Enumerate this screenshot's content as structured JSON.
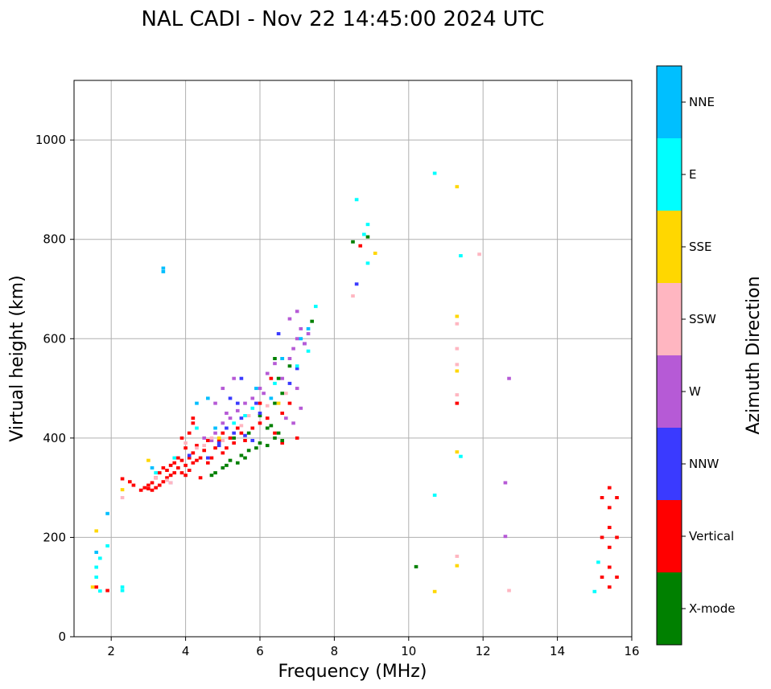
{
  "chart_data": {
    "type": "scatter",
    "title": "NAL CADI - Nov 22 14:45:00 2024 UTC",
    "xlabel": "Frequency (MHz)",
    "ylabel": "Virtual height (km)",
    "xlim": [
      1,
      16
    ],
    "ylim": [
      0,
      1120
    ],
    "xticks": [
      2,
      4,
      6,
      8,
      10,
      12,
      14,
      16
    ],
    "yticks": [
      0,
      200,
      400,
      600,
      800,
      1000
    ],
    "grid": true,
    "colorbar": {
      "label": "Azimuth Direction",
      "categories": [
        {
          "name": "X-mode",
          "color": "#008000"
        },
        {
          "name": "Vertical",
          "color": "#ff0000"
        },
        {
          "name": "NNW",
          "color": "#3a3aff"
        },
        {
          "name": "W",
          "color": "#b65ad6"
        },
        {
          "name": "SSW",
          "color": "#ffb6c1"
        },
        {
          "name": "SSE",
          "color": "#ffd700"
        },
        {
          "name": "E",
          "color": "#00ffff"
        },
        {
          "name": "NNE",
          "color": "#00bfff"
        }
      ]
    },
    "series": [
      {
        "name": "Vertical",
        "points": [
          [
            2.3,
            318
          ],
          [
            2.5,
            312
          ],
          [
            2.6,
            305
          ],
          [
            2.8,
            295
          ],
          [
            2.9,
            300
          ],
          [
            3.0,
            305
          ],
          [
            3.0,
            298
          ],
          [
            3.1,
            310
          ],
          [
            3.1,
            295
          ],
          [
            3.2,
            320
          ],
          [
            3.2,
            300
          ],
          [
            3.3,
            305
          ],
          [
            3.3,
            330
          ],
          [
            3.4,
            312
          ],
          [
            3.4,
            340
          ],
          [
            3.5,
            320
          ],
          [
            3.5,
            335
          ],
          [
            3.6,
            345
          ],
          [
            3.6,
            325
          ],
          [
            3.7,
            350
          ],
          [
            3.7,
            330
          ],
          [
            3.8,
            340
          ],
          [
            3.8,
            360
          ],
          [
            3.9,
            330
          ],
          [
            3.9,
            355
          ],
          [
            4.0,
            325
          ],
          [
            4.0,
            345
          ],
          [
            4.0,
            380
          ],
          [
            4.1,
            335
          ],
          [
            4.1,
            360
          ],
          [
            4.1,
            410
          ],
          [
            4.2,
            350
          ],
          [
            4.2,
            370
          ],
          [
            4.3,
            385
          ],
          [
            4.3,
            355
          ],
          [
            4.4,
            360
          ],
          [
            4.5,
            375
          ],
          [
            4.6,
            350
          ],
          [
            4.6,
            395
          ],
          [
            4.7,
            360
          ],
          [
            4.8,
            380
          ],
          [
            4.9,
            395
          ],
          [
            5.0,
            370
          ],
          [
            5.0,
            410
          ],
          [
            5.1,
            380
          ],
          [
            5.2,
            400
          ],
          [
            5.3,
            390
          ],
          [
            5.4,
            420
          ],
          [
            5.5,
            410
          ],
          [
            5.6,
            395
          ],
          [
            5.8,
            420
          ],
          [
            6.0,
            430
          ],
          [
            6.0,
            470
          ],
          [
            6.2,
            440
          ],
          [
            6.3,
            520
          ],
          [
            6.4,
            410
          ],
          [
            6.6,
            450
          ],
          [
            6.6,
            390
          ],
          [
            6.8,
            470
          ],
          [
            7.0,
            400
          ],
          [
            3.9,
            400
          ],
          [
            4.2,
            430
          ],
          [
            4.4,
            320
          ],
          [
            4.2,
            440
          ],
          [
            11.3,
            470
          ],
          [
            8.7,
            787
          ],
          [
            15.4,
            100
          ],
          [
            15.4,
            140
          ],
          [
            15.4,
            180
          ],
          [
            15.4,
            220
          ],
          [
            15.4,
            260
          ],
          [
            15.4,
            300
          ],
          [
            15.2,
            120
          ],
          [
            15.6,
            120
          ],
          [
            15.2,
            200
          ],
          [
            15.6,
            200
          ],
          [
            15.2,
            280
          ],
          [
            15.6,
            280
          ],
          [
            1.6,
            100
          ],
          [
            1.9,
            93
          ]
        ]
      },
      {
        "name": "X-mode",
        "points": [
          [
            4.7,
            325
          ],
          [
            4.8,
            330
          ],
          [
            5.0,
            340
          ],
          [
            5.1,
            345
          ],
          [
            5.2,
            355
          ],
          [
            5.4,
            350
          ],
          [
            5.5,
            365
          ],
          [
            5.6,
            360
          ],
          [
            5.7,
            375
          ],
          [
            5.9,
            380
          ],
          [
            6.0,
            390
          ],
          [
            6.2,
            385
          ],
          [
            6.4,
            400
          ],
          [
            6.5,
            410
          ],
          [
            6.6,
            395
          ],
          [
            6.3,
            425
          ],
          [
            6.4,
            470
          ],
          [
            6.5,
            520
          ],
          [
            6.6,
            560
          ],
          [
            6.4,
            560
          ],
          [
            6.8,
            545
          ],
          [
            6.2,
            420
          ],
          [
            5.7,
            410
          ],
          [
            5.3,
            400
          ],
          [
            7.4,
            635
          ],
          [
            10.2,
            141
          ],
          [
            8.9,
            805
          ],
          [
            8.5,
            795
          ],
          [
            6.6,
            490
          ],
          [
            6.0,
            445
          ]
        ]
      },
      {
        "name": "NNW",
        "points": [
          [
            3.6,
            310
          ],
          [
            4.1,
            365
          ],
          [
            4.6,
            360
          ],
          [
            4.9,
            390
          ],
          [
            5.1,
            420
          ],
          [
            5.3,
            410
          ],
          [
            5.6,
            405
          ],
          [
            5.8,
            395
          ],
          [
            5.2,
            480
          ],
          [
            5.4,
            470
          ],
          [
            5.5,
            440
          ],
          [
            5.9,
            470
          ],
          [
            6.0,
            450
          ],
          [
            6.5,
            610
          ],
          [
            6.8,
            510
          ],
          [
            7.0,
            540
          ],
          [
            7.2,
            590
          ],
          [
            8.6,
            710
          ],
          [
            5.5,
            520
          ],
          [
            4.9,
            385
          ]
        ]
      },
      {
        "name": "W",
        "points": [
          [
            4.5,
            400
          ],
          [
            4.7,
            395
          ],
          [
            4.8,
            410
          ],
          [
            5.0,
            430
          ],
          [
            5.1,
            450
          ],
          [
            5.2,
            440
          ],
          [
            5.4,
            455
          ],
          [
            5.6,
            470
          ],
          [
            5.8,
            480
          ],
          [
            6.0,
            500
          ],
          [
            6.1,
            490
          ],
          [
            6.2,
            530
          ],
          [
            6.4,
            550
          ],
          [
            6.6,
            520
          ],
          [
            6.8,
            560
          ],
          [
            6.9,
            580
          ],
          [
            7.0,
            600
          ],
          [
            7.1,
            620
          ],
          [
            7.2,
            590
          ],
          [
            7.0,
            500
          ],
          [
            7.1,
            460
          ],
          [
            6.9,
            430
          ],
          [
            6.7,
            440
          ],
          [
            6.8,
            640
          ],
          [
            7.3,
            610
          ],
          [
            5.3,
            520
          ],
          [
            5.0,
            500
          ],
          [
            4.8,
            470
          ],
          [
            12.7,
            520
          ],
          [
            12.6,
            310
          ],
          [
            12.6,
            202
          ],
          [
            7.0,
            655
          ]
        ]
      },
      {
        "name": "SSW",
        "points": [
          [
            2.3,
            280
          ],
          [
            3.2,
            320
          ],
          [
            3.5,
            315
          ],
          [
            3.6,
            310
          ],
          [
            4.3,
            380
          ],
          [
            4.5,
            385
          ],
          [
            4.7,
            400
          ],
          [
            5.0,
            395
          ],
          [
            5.5,
            425
          ],
          [
            5.7,
            445
          ],
          [
            6.2,
            465
          ],
          [
            6.5,
            470
          ],
          [
            6.7,
            490
          ],
          [
            8.5,
            686
          ],
          [
            11.3,
            630
          ],
          [
            11.3,
            580
          ],
          [
            11.3,
            548
          ],
          [
            11.3,
            487
          ],
          [
            11.9,
            770
          ],
          [
            11.3,
            162
          ],
          [
            12.7,
            93
          ],
          [
            4.0,
            390
          ]
        ]
      },
      {
        "name": "SSE",
        "points": [
          [
            1.6,
            213
          ],
          [
            2.3,
            296
          ],
          [
            3.0,
            355
          ],
          [
            4.9,
            400
          ],
          [
            6.5,
            470
          ],
          [
            9.1,
            772
          ],
          [
            11.3,
            906
          ],
          [
            11.3,
            645
          ],
          [
            11.3,
            535
          ],
          [
            11.3,
            372
          ],
          [
            11.3,
            143
          ],
          [
            10.7,
            91
          ],
          [
            1.5,
            100
          ]
        ]
      },
      {
        "name": "E",
        "points": [
          [
            1.6,
            140
          ],
          [
            1.6,
            120
          ],
          [
            1.7,
            92
          ],
          [
            2.3,
            93
          ],
          [
            2.3,
            100
          ],
          [
            1.9,
            183
          ],
          [
            3.2,
            330
          ],
          [
            3.7,
            360
          ],
          [
            4.3,
            420
          ],
          [
            5.3,
            430
          ],
          [
            5.8,
            460
          ],
          [
            6.4,
            510
          ],
          [
            7.0,
            545
          ],
          [
            7.3,
            575
          ],
          [
            7.5,
            665
          ],
          [
            8.6,
            880
          ],
          [
            8.9,
            830
          ],
          [
            8.8,
            810
          ],
          [
            8.9,
            752
          ],
          [
            10.7,
            933
          ],
          [
            10.7,
            285
          ],
          [
            11.4,
            767
          ],
          [
            11.4,
            363
          ],
          [
            15.1,
            150
          ],
          [
            15.0,
            91
          ],
          [
            1.7,
            158
          ],
          [
            5.6,
            445
          ]
        ]
      },
      {
        "name": "NNE",
        "points": [
          [
            1.6,
            170
          ],
          [
            1.9,
            248
          ],
          [
            3.4,
            742
          ],
          [
            3.4,
            735
          ],
          [
            3.1,
            340
          ],
          [
            4.3,
            470
          ],
          [
            4.6,
            480
          ],
          [
            4.8,
            420
          ],
          [
            5.9,
            500
          ],
          [
            6.3,
            480
          ],
          [
            6.6,
            560
          ],
          [
            7.1,
            600
          ],
          [
            7.3,
            620
          ]
        ]
      }
    ]
  }
}
